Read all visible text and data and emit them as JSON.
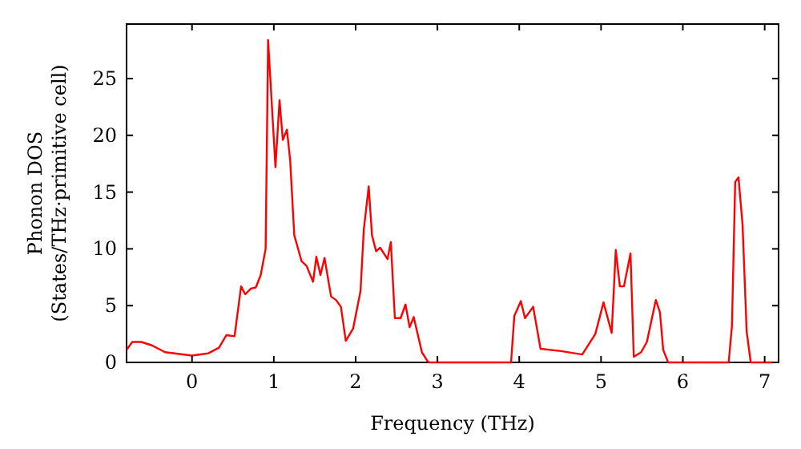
{
  "chart_data": {
    "type": "line",
    "xlabel": "Frequency (THz)",
    "ylabel": "Phonon DOS\n(States/THz·primitive cell)",
    "xlim": [
      -0.8,
      7.17
    ],
    "ylim": [
      0,
      29.8
    ],
    "xticks": [
      0,
      1,
      2,
      3,
      4,
      5,
      6,
      7
    ],
    "yticks": [
      0,
      5,
      10,
      15,
      20,
      25
    ],
    "grid": false,
    "marker": "none",
    "line_style": "solid",
    "series": [
      {
        "color": "#ff0000",
        "x": [
          -0.8,
          -0.73,
          -0.62,
          -0.49,
          -0.33,
          0,
          0.2,
          0.33,
          0.42,
          0.52,
          0.6,
          0.65,
          0.72,
          0.78,
          0.84,
          0.9,
          0.93,
          1.02,
          1.07,
          1.11,
          1.16,
          1.2,
          1.25,
          1.34,
          1.4,
          1.48,
          1.52,
          1.57,
          1.62,
          1.7,
          1.76,
          1.82,
          1.88,
          1.97,
          2.06,
          2.1,
          2.16,
          2.2,
          2.25,
          2.3,
          2.39,
          2.43,
          2.48,
          2.55,
          2.61,
          2.66,
          2.71,
          2.81,
          2.88,
          2.9,
          3.9,
          3.94,
          4.02,
          4.07,
          4.17,
          4.26,
          4.51,
          4.77,
          4.93,
          5.03,
          5.13,
          5.18,
          5.23,
          5.28,
          5.36,
          5.4,
          5.49,
          5.56,
          5.67,
          5.72,
          5.76,
          5.82,
          6.56,
          6.6,
          6.64,
          6.68,
          6.73,
          6.78,
          6.83,
          7.1
        ],
        "values": [
          1.1,
          1.8,
          1.8,
          1.5,
          0.9,
          0.6,
          0.8,
          1.3,
          2.4,
          2.3,
          6.7,
          6.0,
          6.5,
          6.6,
          7.7,
          10,
          28.4,
          17.2,
          23.1,
          19.6,
          20.5,
          17.8,
          11.2,
          8.9,
          8.5,
          7.1,
          9.3,
          7.7,
          9.2,
          5.8,
          5.5,
          4.9,
          1.9,
          3.0,
          6.3,
          11.7,
          15.5,
          11.2,
          9.8,
          10.1,
          9.1,
          10.6,
          3.9,
          3.9,
          5.1,
          3.1,
          4.0,
          0.9,
          0.1,
          0,
          0,
          4.1,
          5.4,
          3.9,
          4.9,
          1.2,
          1.0,
          0.7,
          2.5,
          5.3,
          2.6,
          9.9,
          6.7,
          6.7,
          9.6,
          0.5,
          0.9,
          1.8,
          5.5,
          4.4,
          1.1,
          0,
          0,
          3.2,
          15.9,
          16.3,
          12.1,
          2.7,
          0,
          0
        ]
      }
    ]
  }
}
